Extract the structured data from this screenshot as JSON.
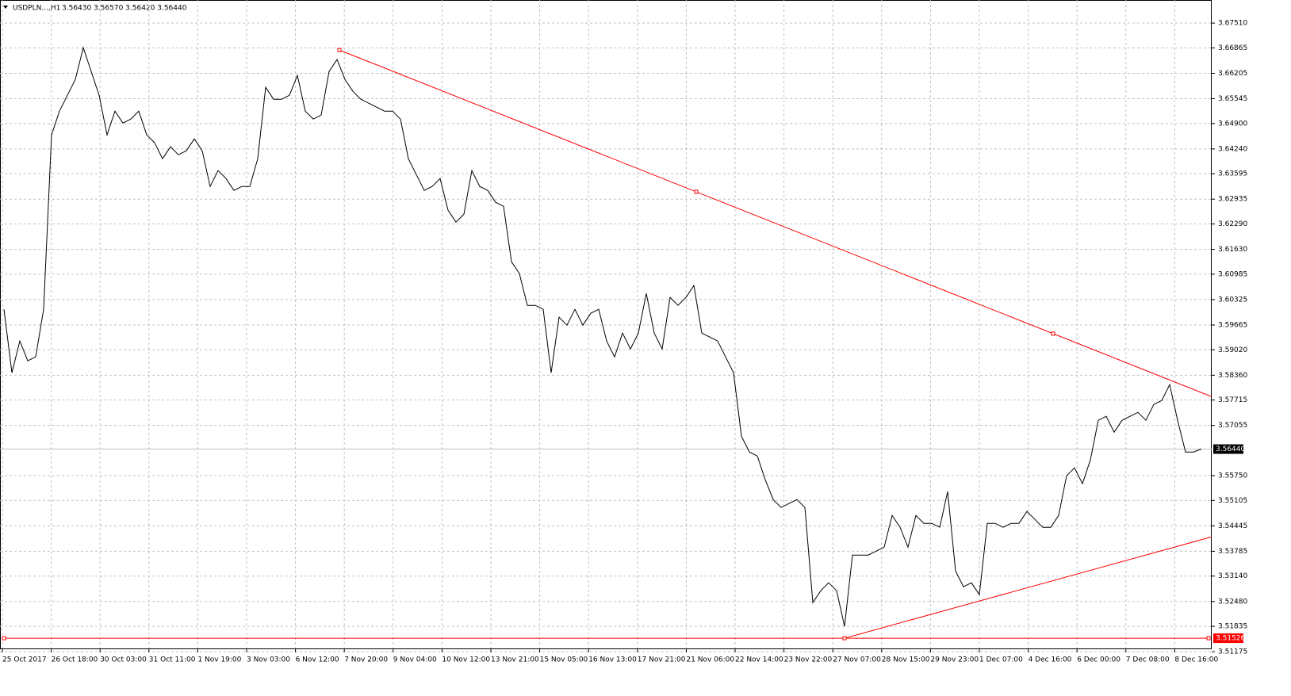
{
  "chart_data": {
    "type": "line",
    "title": "USDPLN...,H1",
    "subtitle": "3.56430 3.56570 3.56420 3.56440",
    "series": [
      {
        "color": "#000000",
        "values": [
          3.60073,
          3.58425,
          3.59249,
          3.58734,
          3.58837,
          3.60073,
          3.64605,
          3.65223,
          3.65635,
          3.66047,
          3.66871,
          3.66253,
          3.65635,
          3.64605,
          3.65223,
          3.64914,
          3.65017,
          3.65223,
          3.64605,
          3.64399,
          3.63987,
          3.64296,
          3.6409,
          3.64193,
          3.64502,
          3.64193,
          3.63266,
          3.63678,
          3.63472,
          3.63163,
          3.63266,
          3.63266,
          3.63987,
          3.65841,
          3.65532,
          3.65532,
          3.65635,
          3.6615,
          3.65223,
          3.65017,
          3.6512,
          3.66253,
          3.66562,
          3.66047,
          3.65738,
          3.65532,
          3.65429,
          3.65326,
          3.65223,
          3.65223,
          3.65017,
          3.63987,
          3.63575,
          3.63163,
          3.63266,
          3.63472,
          3.62648,
          3.62339,
          3.62545,
          3.63678,
          3.63266,
          3.63163,
          3.62854,
          3.62751,
          3.61309,
          3.61,
          3.60176,
          3.60176,
          3.60073,
          3.58425,
          3.59867,
          3.59661,
          3.60073,
          3.59661,
          3.5997,
          3.60073,
          3.59249,
          3.58837,
          3.59455,
          3.59043,
          3.59455,
          3.60485,
          3.59455,
          3.59043,
          3.60382,
          3.60176,
          3.60382,
          3.60691,
          3.59455,
          3.59352,
          3.59249,
          3.58837,
          3.58425,
          3.56777,
          3.56365,
          3.56262,
          3.55644,
          3.55129,
          3.54923,
          3.55026,
          3.55129,
          3.54923,
          3.52451,
          3.5276,
          3.52966,
          3.5276,
          3.51833,
          3.53687,
          3.53687,
          3.53687,
          3.5379,
          3.53893,
          3.54717,
          3.54408,
          3.53893,
          3.54717,
          3.54511,
          3.54511,
          3.54408,
          3.55335,
          3.53275,
          3.52863,
          3.52966,
          3.52657,
          3.54511,
          3.54511,
          3.54408,
          3.54511,
          3.54511,
          3.5482,
          3.54614,
          3.54408,
          3.54408,
          3.54717,
          3.55747,
          3.55953,
          3.55541,
          3.56159,
          3.57189,
          3.57292,
          3.5688,
          3.57189,
          3.57292,
          3.57395,
          3.57189,
          3.57601,
          3.57704,
          3.58116,
          3.57189,
          3.56365,
          3.56365,
          3.5644
        ]
      }
    ],
    "xlim": [
      -0.5,
      152.3
    ],
    "xticks": [
      {
        "value": -0.2,
        "label": "25 Oct 2017"
      },
      {
        "value": 5.96,
        "label": "26 Oct 18:00"
      },
      {
        "value": 12.12,
        "label": "30 Oct 03:00"
      },
      {
        "value": 18.28,
        "label": "31 Oct 11:00"
      },
      {
        "value": 24.44,
        "label": "1 Nov 19:00"
      },
      {
        "value": 30.6,
        "label": "3 Nov 03:00"
      },
      {
        "value": 36.76,
        "label": "6 Nov 12:00"
      },
      {
        "value": 42.92,
        "label": "7 Nov 20:00"
      },
      {
        "value": 49.08,
        "label": "9 Nov 04:00"
      },
      {
        "value": 55.24,
        "label": "10 Nov 12:00"
      },
      {
        "value": 61.4,
        "label": "13 Nov 21:00"
      },
      {
        "value": 67.56,
        "label": "15 Nov 05:00"
      },
      {
        "value": 73.72,
        "label": "16 Nov 13:00"
      },
      {
        "value": 79.88,
        "label": "17 Nov 21:00"
      },
      {
        "value": 86.04,
        "label": "21 Nov 06:00"
      },
      {
        "value": 92.2,
        "label": "22 Nov 14:00"
      },
      {
        "value": 98.36,
        "label": "23 Nov 22:00"
      },
      {
        "value": 104.52,
        "label": "27 Nov 07:00"
      },
      {
        "value": 110.68,
        "label": "28 Nov 15:00"
      },
      {
        "value": 116.84,
        "label": "29 Nov 23:00"
      },
      {
        "value": 123,
        "label": "1 Dec 07:00"
      },
      {
        "value": 129.16,
        "label": "4 Dec 16:00"
      },
      {
        "value": 135.32,
        "label": "6 Dec 00:00"
      },
      {
        "value": 141.48,
        "label": "7 Dec 08:00"
      },
      {
        "value": 147.64,
        "label": "8 Dec 16:00"
      }
    ],
    "ylim": [
      3.5126,
      3.6811
    ],
    "yticks": [
      {
        "value": 3.6751,
        "label": "3.67510"
      },
      3.66865,
      3.66205,
      3.65545,
      {
        "value": 3.649,
        "label": "3.64900"
      },
      {
        "value": 3.6424,
        "label": "3.64240"
      },
      3.63595,
      3.62935,
      {
        "value": 3.6229,
        "label": "3.62290"
      },
      {
        "value": 3.6163,
        "label": "3.61630"
      },
      3.60985,
      3.60325,
      3.59665,
      {
        "value": 3.5902,
        "label": "3.59020"
      },
      {
        "value": 3.5836,
        "label": "3.58360"
      },
      3.57715,
      3.57055,
      {
        "value": 3.5575,
        "label": "3.55750"
      },
      3.55105,
      3.54445,
      3.53785,
      {
        "value": 3.5314,
        "label": "3.53140"
      },
      {
        "value": 3.5248,
        "label": "3.52480"
      },
      3.51835,
      3.51175
    ],
    "grid": true,
    "last_price": {
      "value": 3.5644,
      "label": "3.56440"
    },
    "hline": {
      "value": 3.51526,
      "color": "#ff0000"
    },
    "trendlines": [
      {
        "color": "#ff0000",
        "from": [
          42.3,
          3.6681
        ],
        "to": [
          132.3,
          3.5944
        ]
      },
      {
        "color": "#ff0000",
        "from": [
          106,
          3.51526
        ],
        "to": [
          152.3,
          3.5416
        ]
      }
    ]
  }
}
